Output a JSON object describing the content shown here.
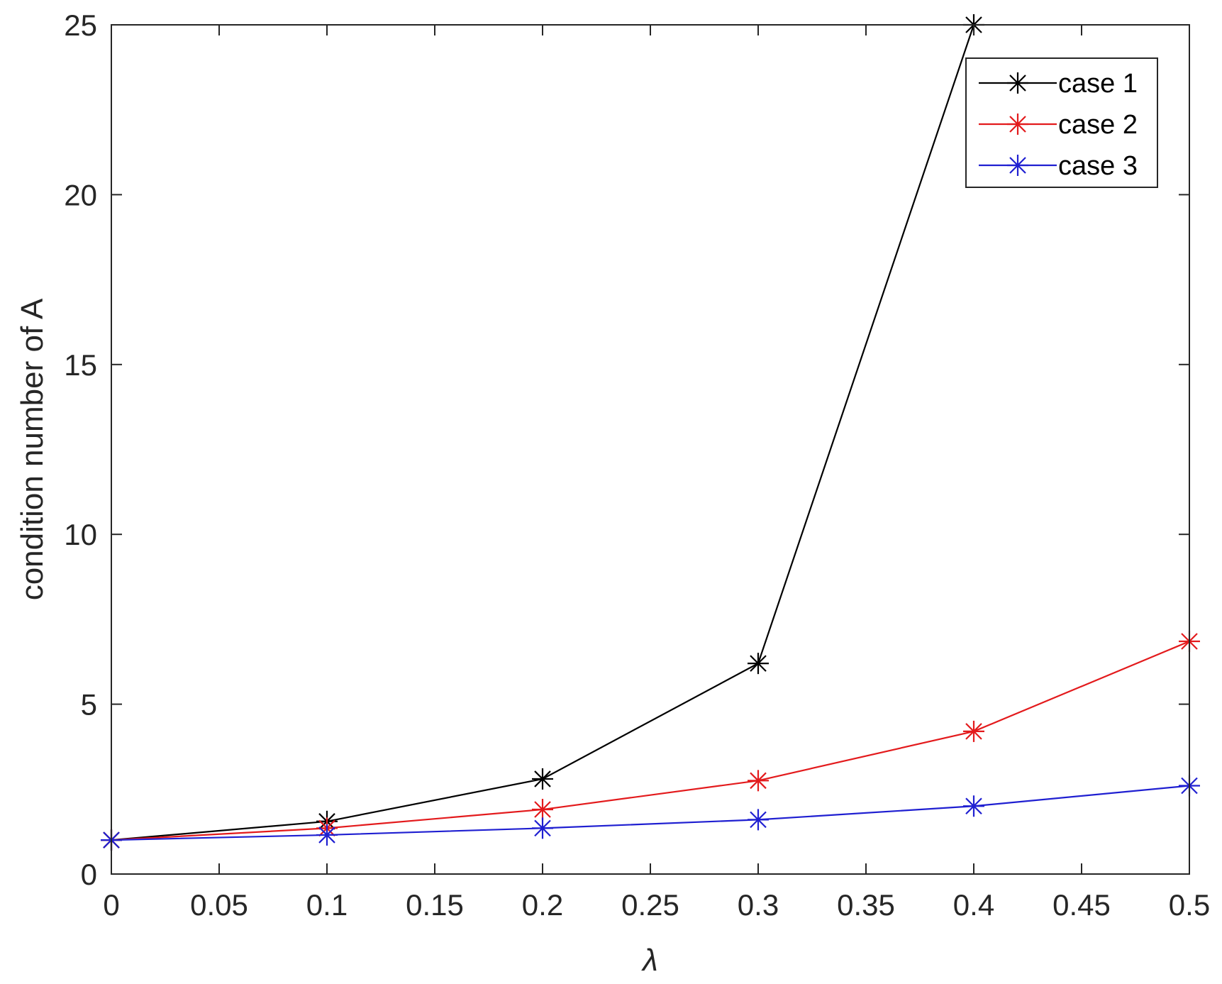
{
  "chart_data": {
    "type": "line",
    "title": "",
    "xlabel": "λ",
    "ylabel": "condition  number of A",
    "xlim": [
      0,
      0.5
    ],
    "ylim": [
      0,
      25
    ],
    "x_ticks": [
      0,
      0.05,
      0.1,
      0.15,
      0.2,
      0.25,
      0.3,
      0.35,
      0.4,
      0.45,
      0.5
    ],
    "x_tick_labels": [
      "0",
      "0.05",
      "0.1",
      "0.15",
      "0.2",
      "0.25",
      "0.3",
      "0.35",
      "0.4",
      "0.45",
      "0.5"
    ],
    "y_ticks": [
      0,
      5,
      10,
      15,
      20,
      25
    ],
    "y_tick_labels": [
      "0",
      "5",
      "10",
      "15",
      "20",
      "25"
    ],
    "grid": false,
    "legend_position": "top-right",
    "series": [
      {
        "name": "case 1",
        "color": "#000000",
        "marker": "asterisk",
        "x": [
          0,
          0.1,
          0.2,
          0.3,
          0.4
        ],
        "y": [
          1.0,
          1.55,
          2.8,
          6.2,
          25.0
        ]
      },
      {
        "name": "case 2",
        "color": "#e31a1c",
        "marker": "asterisk",
        "x": [
          0,
          0.1,
          0.2,
          0.3,
          0.4,
          0.5
        ],
        "y": [
          1.0,
          1.35,
          1.9,
          2.75,
          4.2,
          6.85
        ]
      },
      {
        "name": "case 3",
        "color": "#1f1fd1",
        "marker": "asterisk",
        "x": [
          0,
          0.1,
          0.2,
          0.3,
          0.4,
          0.5
        ],
        "y": [
          1.0,
          1.15,
          1.35,
          1.6,
          2.0,
          2.6
        ]
      }
    ]
  }
}
